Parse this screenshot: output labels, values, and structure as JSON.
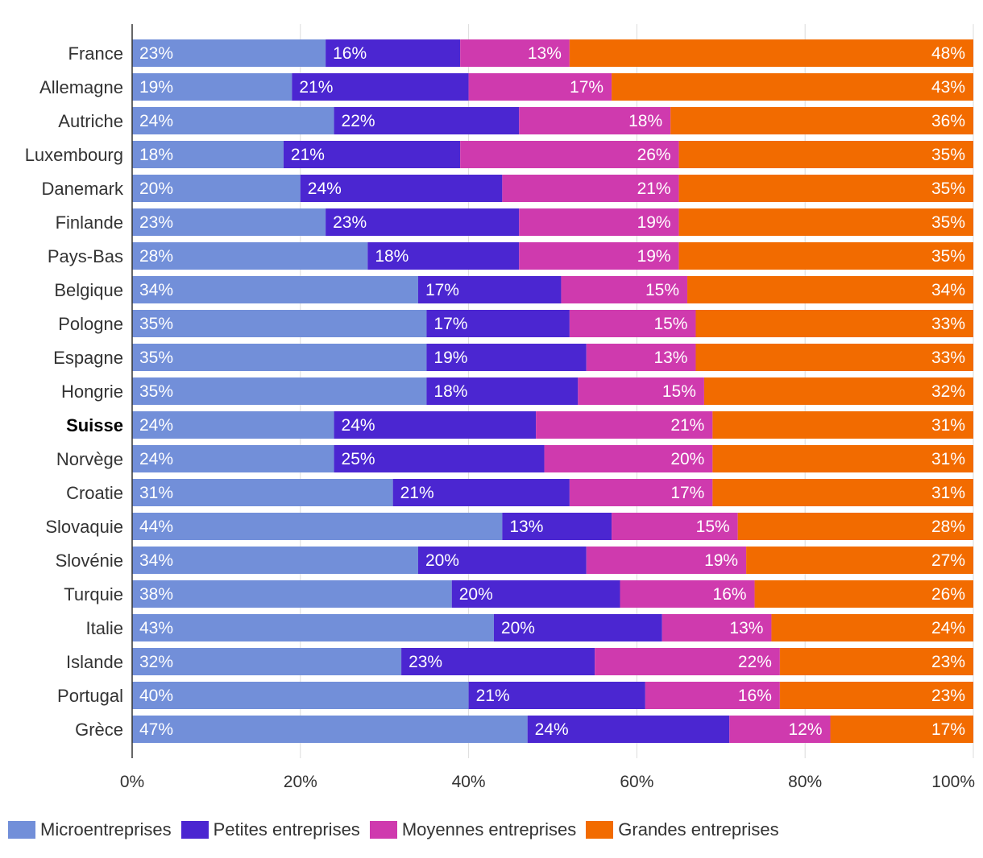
{
  "chart_data": {
    "type": "bar",
    "orientation": "horizontal",
    "stacked": true,
    "categories": [
      "France",
      "Allemagne",
      "Autriche",
      "Luxembourg",
      "Danemark",
      "Finlande",
      "Pays-Bas",
      "Belgique",
      "Pologne",
      "Espagne",
      "Hongrie",
      "Suisse",
      "Norvège",
      "Croatie",
      "Slovaquie",
      "Slovénie",
      "Turquie",
      "Italie",
      "Islande",
      "Portugal",
      "Grèce"
    ],
    "highlight_category": "Suisse",
    "series": [
      {
        "name": "Microentreprises",
        "color": "#728fd9",
        "values": [
          23,
          19,
          24,
          18,
          20,
          23,
          28,
          34,
          35,
          35,
          35,
          24,
          24,
          31,
          44,
          34,
          38,
          43,
          32,
          40,
          47
        ],
        "labels": [
          "23%",
          "19%",
          "24%",
          "18%",
          "20%",
          "23%",
          "28%",
          "34%",
          "35%",
          "35%",
          "35%",
          "24%",
          "24%",
          "31%",
          "44%",
          "34%",
          "38%",
          "43%",
          "32%",
          "40%",
          "47%"
        ]
      },
      {
        "name": "Petites entreprises",
        "color": "#4b26d1",
        "values": [
          16,
          21,
          22,
          21,
          24,
          23,
          18,
          17,
          17,
          19,
          18,
          24,
          25,
          21,
          13,
          20,
          20,
          20,
          23,
          21,
          24
        ],
        "labels": [
          "16%",
          "21%",
          "22%",
          "21%",
          "24%",
          "23%",
          "18%",
          "17%",
          "17%",
          "19%",
          "18%",
          "24%",
          "25%",
          "21%",
          "13%",
          "20%",
          "20%",
          "20%",
          "23%",
          "21%",
          "24%"
        ]
      },
      {
        "name": "Moyennes entreprises",
        "color": "#cf3aae",
        "values": [
          13,
          17,
          18,
          26,
          21,
          19,
          19,
          15,
          15,
          13,
          15,
          21,
          20,
          17,
          15,
          19,
          16,
          13,
          22,
          16,
          12
        ],
        "labels": [
          "13%",
          "17%",
          "18%",
          "26%",
          "21%",
          "19%",
          "19%",
          "15%",
          "15%",
          "13%",
          "15%",
          "21%",
          "20%",
          "17%",
          "15%",
          "19%",
          "16%",
          "13%",
          "22%",
          "16%",
          "12%"
        ]
      },
      {
        "name": "Grandes entreprises",
        "color": "#f26b00",
        "values": [
          48,
          43,
          36,
          35,
          35,
          35,
          35,
          34,
          33,
          33,
          32,
          31,
          31,
          31,
          28,
          27,
          26,
          24,
          23,
          23,
          17
        ],
        "labels": [
          "48%",
          "43%",
          "36%",
          "35%",
          "35%",
          "35%",
          "35%",
          "34%",
          "33%",
          "33%",
          "32%",
          "31%",
          "31%",
          "31%",
          "28%",
          "27%",
          "26%",
          "24%",
          "23%",
          "23%",
          "17%"
        ]
      }
    ],
    "xlim": [
      0,
      100
    ],
    "x_ticks": [
      0,
      20,
      40,
      60,
      80,
      100
    ],
    "x_tick_labels": [
      "0%",
      "20%",
      "40%",
      "60%",
      "80%",
      "100%"
    ],
    "grid": true,
    "legend_position": "bottom-left"
  },
  "legend": {
    "items": [
      {
        "label": "Microentreprises",
        "color": "#728fd9"
      },
      {
        "label": "Petites entreprises",
        "color": "#4b26d1"
      },
      {
        "label": "Moyennes entreprises",
        "color": "#cf3aae"
      },
      {
        "label": "Grandes entreprises",
        "color": "#f26b00"
      }
    ]
  }
}
